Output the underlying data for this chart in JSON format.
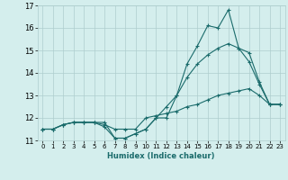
{
  "xlabel": "Humidex (Indice chaleur)",
  "ylabel": "",
  "bg_color": "#d4eeed",
  "line_color": "#1a6b6b",
  "grid_color": "#aecece",
  "xlim": [
    -0.5,
    23.5
  ],
  "ylim": [
    11.0,
    17.0
  ],
  "xticks": [
    0,
    1,
    2,
    3,
    4,
    5,
    6,
    7,
    8,
    9,
    10,
    11,
    12,
    13,
    14,
    15,
    16,
    17,
    18,
    19,
    20,
    21,
    22,
    23
  ],
  "yticks": [
    11,
    12,
    13,
    14,
    15,
    16,
    17
  ],
  "line1_x": [
    0,
    1,
    2,
    3,
    4,
    5,
    6,
    7,
    8,
    9,
    10,
    11,
    12,
    13,
    14,
    15,
    16,
    17,
    18,
    19,
    20,
    21,
    22,
    23
  ],
  "line1_y": [
    11.5,
    11.5,
    11.7,
    11.8,
    11.8,
    11.8,
    11.8,
    11.1,
    11.1,
    11.3,
    11.5,
    12.0,
    12.0,
    13.0,
    14.4,
    15.2,
    16.1,
    16.0,
    16.8,
    15.1,
    14.9,
    13.6,
    12.6,
    12.6
  ],
  "line2_x": [
    0,
    1,
    2,
    3,
    4,
    5,
    6,
    7,
    8,
    9,
    10,
    11,
    12,
    13,
    14,
    15,
    16,
    17,
    18,
    19,
    20,
    21,
    22,
    23
  ],
  "line2_y": [
    11.5,
    11.5,
    11.7,
    11.8,
    11.8,
    11.8,
    11.6,
    11.1,
    11.1,
    11.3,
    11.5,
    12.0,
    12.5,
    13.0,
    13.8,
    14.4,
    14.8,
    15.1,
    15.3,
    15.1,
    14.5,
    13.5,
    12.6,
    12.6
  ],
  "line3_x": [
    0,
    1,
    2,
    3,
    4,
    5,
    6,
    7,
    8,
    9,
    10,
    11,
    12,
    13,
    14,
    15,
    16,
    17,
    18,
    19,
    20,
    21,
    22,
    23
  ],
  "line3_y": [
    11.5,
    11.5,
    11.7,
    11.8,
    11.8,
    11.8,
    11.7,
    11.5,
    11.5,
    11.5,
    12.0,
    12.1,
    12.2,
    12.3,
    12.5,
    12.6,
    12.8,
    13.0,
    13.1,
    13.2,
    13.3,
    13.0,
    12.6,
    12.6
  ]
}
